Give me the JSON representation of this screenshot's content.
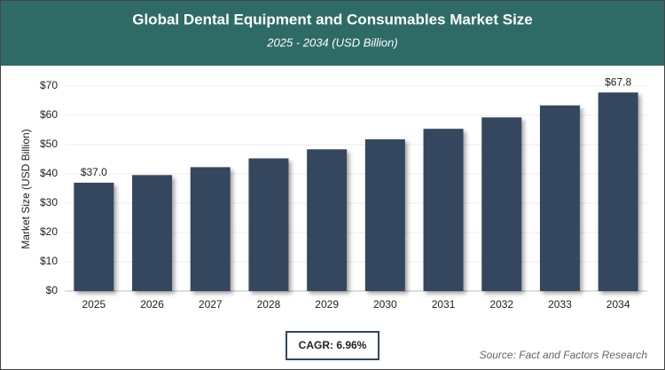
{
  "chart_data": {
    "type": "bar",
    "title": "Global Dental Equipment and Consumables Market Size",
    "subtitle": "2025 - 2034 (USD Billion)",
    "y_label": "Market Size (USD Billion)",
    "categories": [
      "2025",
      "2026",
      "2027",
      "2028",
      "2029",
      "2030",
      "2031",
      "2032",
      "2033",
      "2034"
    ],
    "values": [
      37.0,
      39.6,
      42.3,
      45.3,
      48.4,
      51.8,
      55.4,
      59.3,
      63.4,
      67.8
    ],
    "value_labels": [
      "$37.0",
      null,
      null,
      null,
      null,
      null,
      null,
      null,
      null,
      "$67.8"
    ],
    "color": "#35475e",
    "ylim": [
      0,
      70
    ],
    "yticks": [
      {
        "value": 0,
        "label": "$0"
      },
      {
        "value": 10,
        "label": "$10"
      },
      {
        "value": 20,
        "label": "$20"
      },
      {
        "value": 30,
        "label": "$30"
      },
      {
        "value": 40,
        "label": "$40"
      },
      {
        "value": 50,
        "label": "$50"
      },
      {
        "value": 60,
        "label": "$60"
      },
      {
        "value": 70,
        "label": "$70"
      }
    ],
    "grid": true,
    "annotation": "CAGR: 6.96%",
    "source": "Source: Fact and Factors Research"
  }
}
